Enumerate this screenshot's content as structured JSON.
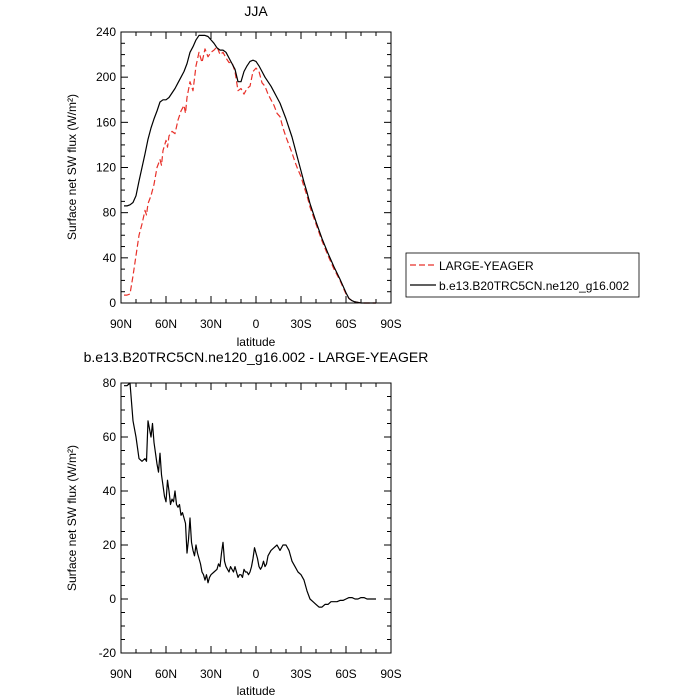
{
  "chart_data": [
    {
      "type": "line",
      "title": "JJA",
      "xlabel": "latitude",
      "ylabel": "Surface net SW flux (W/m²)",
      "xlim": [
        90,
        -90
      ],
      "ylim": [
        0,
        240
      ],
      "x_ticks": [
        {
          "value": 90,
          "label": "90N"
        },
        {
          "value": 60,
          "label": "60N"
        },
        {
          "value": 30,
          "label": "30N"
        },
        {
          "value": 0,
          "label": "0"
        },
        {
          "value": -30,
          "label": "30S"
        },
        {
          "value": -60,
          "label": "60S"
        },
        {
          "value": -90,
          "label": "90S"
        }
      ],
      "y_ticks": [
        0,
        40,
        80,
        120,
        160,
        200,
        240
      ],
      "legend_position": "right",
      "series": [
        {
          "name": "LARGE-YEAGER",
          "color": "#e8312a",
          "dash": "dashed",
          "points": [
            [
              88,
              7
            ],
            [
              86,
              7
            ],
            [
              84,
              8
            ],
            [
              82,
              24
            ],
            [
              80,
              42
            ],
            [
              78,
              60
            ],
            [
              76,
              70
            ],
            [
              74,
              82
            ],
            [
              73,
              78
            ],
            [
              72,
              88
            ],
            [
              70,
              95
            ],
            [
              68,
              105
            ],
            [
              66,
              120
            ],
            [
              64,
              127
            ],
            [
              63,
              122
            ],
            [
              62,
              135
            ],
            [
              60,
              144
            ],
            [
              59,
              138
            ],
            [
              58,
              148
            ],
            [
              56,
              152
            ],
            [
              54,
              150
            ],
            [
              52,
              162
            ],
            [
              50,
              170
            ],
            [
              48,
              175
            ],
            [
              47,
              168
            ],
            [
              46,
              182
            ],
            [
              44,
              196
            ],
            [
              42,
              188
            ],
            [
              40,
              210
            ],
            [
              38,
              222
            ],
            [
              36,
              213
            ],
            [
              34,
              225
            ],
            [
              32,
              218
            ],
            [
              30,
              222
            ],
            [
              28,
              224
            ],
            [
              26,
              227
            ],
            [
              24,
              220
            ],
            [
              22,
              222
            ],
            [
              20,
              217
            ],
            [
              18,
              213
            ],
            [
              16,
              213
            ],
            [
              14,
              205
            ],
            [
              12,
              188
            ],
            [
              10,
              190
            ],
            [
              8,
              185
            ],
            [
              6,
              190
            ],
            [
              4,
              192
            ],
            [
              2,
              205
            ],
            [
              0,
              208
            ],
            [
              -2,
              205
            ],
            [
              -4,
              195
            ],
            [
              -6,
              192
            ],
            [
              -8,
              185
            ],
            [
              -10,
              180
            ],
            [
              -12,
              175
            ],
            [
              -14,
              168
            ],
            [
              -16,
              165
            ],
            [
              -18,
              155
            ],
            [
              -20,
              147
            ],
            [
              -22,
              140
            ],
            [
              -24,
              133
            ],
            [
              -26,
              125
            ],
            [
              -28,
              118
            ],
            [
              -30,
              112
            ],
            [
              -32,
              103
            ],
            [
              -34,
              95
            ],
            [
              -36,
              85
            ],
            [
              -40,
              70
            ],
            [
              -44,
              55
            ],
            [
              -48,
              42
            ],
            [
              -52,
              30
            ],
            [
              -56,
              20
            ],
            [
              -60,
              8
            ],
            [
              -62,
              4
            ],
            [
              -64,
              2
            ],
            [
              -66,
              1
            ],
            [
              -70,
              0
            ],
            [
              -80,
              0
            ]
          ]
        },
        {
          "name": "b.e13.B20TRC5CN.ne120_g16.002",
          "color": "#000000",
          "dash": "solid",
          "points": [
            [
              88,
              86
            ],
            [
              86,
              86
            ],
            [
              84,
              87
            ],
            [
              82,
              89
            ],
            [
              80,
              95
            ],
            [
              78,
              108
            ],
            [
              76,
              120
            ],
            [
              74,
              132
            ],
            [
              72,
              145
            ],
            [
              70,
              155
            ],
            [
              68,
              163
            ],
            [
              66,
              170
            ],
            [
              64,
              178
            ],
            [
              62,
              180
            ],
            [
              60,
              180
            ],
            [
              58,
              182
            ],
            [
              56,
              186
            ],
            [
              54,
              190
            ],
            [
              52,
              195
            ],
            [
              50,
              200
            ],
            [
              48,
              205
            ],
            [
              46,
              212
            ],
            [
              44,
              222
            ],
            [
              42,
              227
            ],
            [
              40,
              233
            ],
            [
              38,
              237
            ],
            [
              34,
              237
            ],
            [
              32,
              236
            ],
            [
              30,
              233
            ],
            [
              28,
              230
            ],
            [
              26,
              226
            ],
            [
              24,
              224
            ],
            [
              22,
              224
            ],
            [
              20,
              222
            ],
            [
              18,
              217
            ],
            [
              16,
              212
            ],
            [
              14,
              207
            ],
            [
              12,
              196
            ],
            [
              10,
              196
            ],
            [
              8,
              205
            ],
            [
              6,
              210
            ],
            [
              4,
              214
            ],
            [
              2,
              215
            ],
            [
              0,
              214
            ],
            [
              -2,
              210
            ],
            [
              -4,
              205
            ],
            [
              -6,
              200
            ],
            [
              -8,
              196
            ],
            [
              -10,
              192
            ],
            [
              -12,
              187
            ],
            [
              -14,
              182
            ],
            [
              -16,
              177
            ],
            [
              -18,
              170
            ],
            [
              -20,
              163
            ],
            [
              -22,
              155
            ],
            [
              -24,
              147
            ],
            [
              -26,
              137
            ],
            [
              -28,
              127
            ],
            [
              -30,
              117
            ],
            [
              -32,
              107
            ],
            [
              -34,
              98
            ],
            [
              -36,
              88
            ],
            [
              -40,
              72
            ],
            [
              -44,
              57
            ],
            [
              -48,
              44
            ],
            [
              -52,
              32
            ],
            [
              -56,
              21
            ],
            [
              -60,
              9
            ],
            [
              -62,
              4
            ],
            [
              -64,
              2
            ],
            [
              -66,
              1
            ],
            [
              -70,
              0
            ],
            [
              -80,
              0
            ]
          ]
        }
      ]
    },
    {
      "type": "line",
      "title": "b.e13.B20TRC5CN.ne120_g16.002 - LARGE-YEAGER",
      "xlabel": "latitude",
      "ylabel": "Surface net SW flux (W/m²)",
      "xlim": [
        90,
        -90
      ],
      "ylim": [
        -20,
        80
      ],
      "x_ticks": [
        {
          "value": 90,
          "label": "90N"
        },
        {
          "value": 60,
          "label": "60N"
        },
        {
          "value": 30,
          "label": "30N"
        },
        {
          "value": 0,
          "label": "0"
        },
        {
          "value": -30,
          "label": "30S"
        },
        {
          "value": -60,
          "label": "60S"
        },
        {
          "value": -90,
          "label": "90S"
        }
      ],
      "y_ticks": [
        -20,
        0,
        20,
        40,
        60,
        80
      ],
      "series": [
        {
          "color": "#000000",
          "dash": "solid",
          "points": [
            [
              88,
              79
            ],
            [
              86,
              79
            ],
            [
              84,
              80
            ],
            [
              82,
              66
            ],
            [
              80,
              60
            ],
            [
              78,
              52
            ],
            [
              76,
              51
            ],
            [
              74,
              52
            ],
            [
              73,
              51
            ],
            [
              72,
              66
            ],
            [
              71,
              63
            ],
            [
              70,
              60
            ],
            [
              69,
              65
            ],
            [
              68,
              58
            ],
            [
              66,
              50
            ],
            [
              65,
              47
            ],
            [
              64,
              54
            ],
            [
              63,
              46
            ],
            [
              62,
              42
            ],
            [
              61,
              38
            ],
            [
              60,
              36
            ],
            [
              59,
              44
            ],
            [
              58,
              40
            ],
            [
              57,
              35
            ],
            [
              56,
              37
            ],
            [
              55,
              36
            ],
            [
              54,
              40
            ],
            [
              53,
              35
            ],
            [
              52,
              34
            ],
            [
              51,
              35
            ],
            [
              50,
              31
            ],
            [
              49,
              32
            ],
            [
              48,
              30
            ],
            [
              47,
              28
            ],
            [
              46,
              17
            ],
            [
              45,
              22
            ],
            [
              44,
              30
            ],
            [
              43,
              21
            ],
            [
              42,
              18
            ],
            [
              41,
              16
            ],
            [
              40,
              20
            ],
            [
              39,
              17
            ],
            [
              38,
              15
            ],
            [
              37,
              13
            ],
            [
              36,
              10
            ],
            [
              35,
              9
            ],
            [
              34,
              7
            ],
            [
              33,
              9
            ],
            [
              32,
              6
            ],
            [
              31,
              8
            ],
            [
              30,
              9
            ],
            [
              28,
              10
            ],
            [
              26,
              11
            ],
            [
              25,
              13
            ],
            [
              24,
              12
            ],
            [
              23,
              17
            ],
            [
              22,
              21
            ],
            [
              21,
              14
            ],
            [
              20,
              12
            ],
            [
              19,
              11
            ],
            [
              18,
              10
            ],
            [
              17,
              12
            ],
            [
              16,
              11
            ],
            [
              15,
              10
            ],
            [
              14,
              12
            ],
            [
              13,
              10
            ],
            [
              12,
              8
            ],
            [
              11,
              9
            ],
            [
              10,
              9
            ],
            [
              9,
              8
            ],
            [
              8,
              11
            ],
            [
              7,
              10
            ],
            [
              6,
              10
            ],
            [
              5,
              9
            ],
            [
              4,
              10
            ],
            [
              3,
              12
            ],
            [
              2,
              15
            ],
            [
              1,
              19
            ],
            [
              0,
              17
            ],
            [
              -1,
              15
            ],
            [
              -2,
              12
            ],
            [
              -3,
              11
            ],
            [
              -4,
              12
            ],
            [
              -5,
              14
            ],
            [
              -6,
              12
            ],
            [
              -7,
              13
            ],
            [
              -8,
              16
            ],
            [
              -10,
              18
            ],
            [
              -12,
              19
            ],
            [
              -14,
              20
            ],
            [
              -16,
              18
            ],
            [
              -18,
              20
            ],
            [
              -20,
              20
            ],
            [
              -22,
              18
            ],
            [
              -24,
              14
            ],
            [
              -26,
              12
            ],
            [
              -28,
              10
            ],
            [
              -30,
              9
            ],
            [
              -32,
              7
            ],
            [
              -34,
              3
            ],
            [
              -36,
              0
            ],
            [
              -38,
              -1
            ],
            [
              -40,
              -2
            ],
            [
              -42,
              -3
            ],
            [
              -44,
              -3
            ],
            [
              -46,
              -2
            ],
            [
              -48,
              -2
            ],
            [
              -50,
              -1
            ],
            [
              -52,
              -1
            ],
            [
              -54,
              -1
            ],
            [
              -56,
              -0.5
            ],
            [
              -58,
              -0.5
            ],
            [
              -60,
              0
            ],
            [
              -62,
              0.5
            ],
            [
              -64,
              0.5
            ],
            [
              -66,
              0
            ],
            [
              -68,
              0
            ],
            [
              -70,
              0.5
            ],
            [
              -72,
              0.5
            ],
            [
              -74,
              0
            ],
            [
              -76,
              0
            ],
            [
              -78,
              0
            ],
            [
              -80,
              0
            ]
          ]
        }
      ]
    }
  ]
}
